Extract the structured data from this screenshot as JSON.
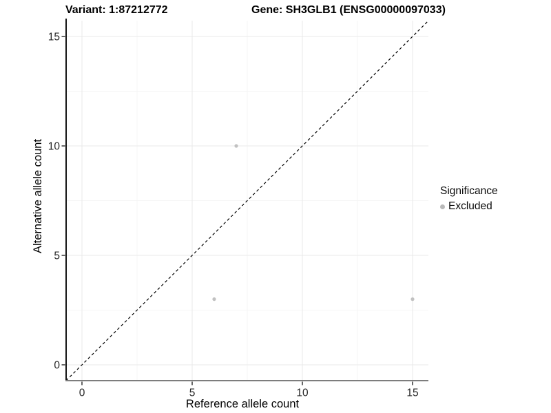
{
  "chart_data": {
    "type": "scatter",
    "title_left": "Variant: 1:87212772",
    "title_right": "Gene: SH3GLB1 (ENSG00000097033)",
    "xlabel": "Reference allele count",
    "ylabel": "Alternative allele count",
    "xlim": [
      -0.75,
      15.75
    ],
    "ylim": [
      -0.75,
      15.75
    ],
    "x_major_ticks": [
      0,
      5,
      10,
      15
    ],
    "y_major_ticks": [
      0,
      5,
      10,
      15
    ],
    "x_minor_ticks": [
      2.5,
      7.5,
      12.5
    ],
    "y_minor_ticks": [
      2.5,
      7.5,
      12.5
    ],
    "grid": true,
    "series": [
      {
        "name": "Excluded",
        "color": "#c1c1c1",
        "points": [
          {
            "x": 7,
            "y": 10
          },
          {
            "x": 6,
            "y": 3
          },
          {
            "x": 15,
            "y": 3
          }
        ]
      }
    ],
    "identity_line": {
      "style": "dashed",
      "color": "#000000",
      "from": [
        -0.72,
        -0.72
      ],
      "to": [
        15.72,
        15.72
      ]
    },
    "legend": {
      "position": "right",
      "title": "Significance",
      "items": [
        {
          "label": "Excluded",
          "color": "#b9b9b9"
        }
      ]
    }
  }
}
